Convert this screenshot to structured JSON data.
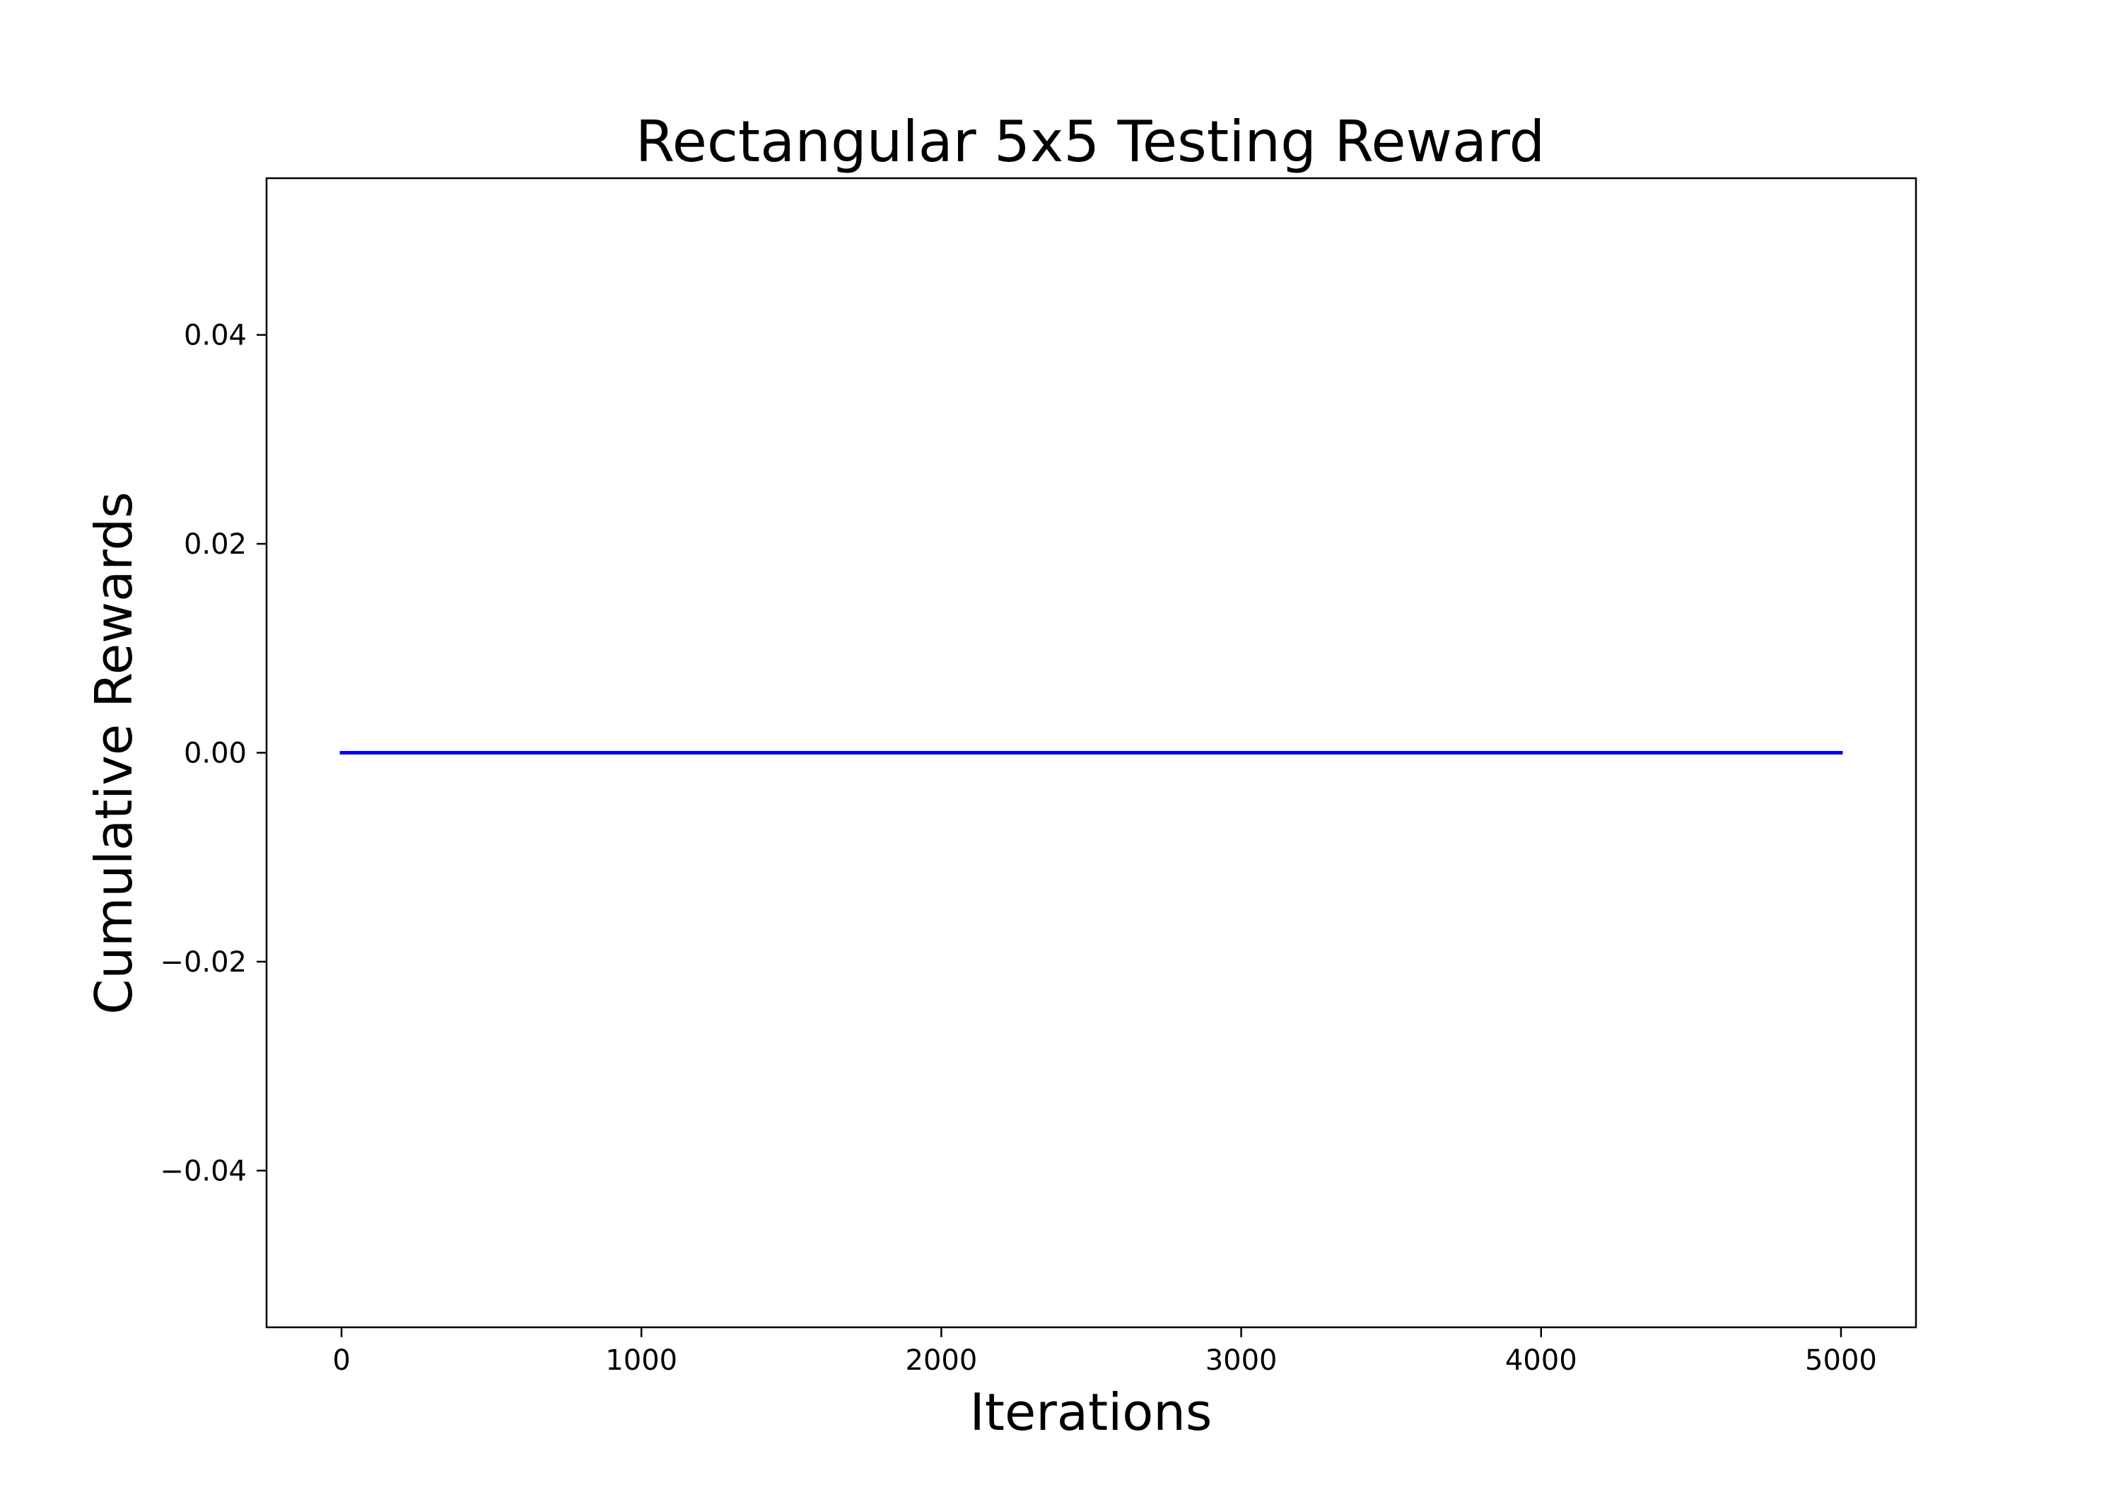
{
  "chart_data": {
    "type": "line",
    "title": "Rectangular 5x5 Testing Reward",
    "xlabel": "Iterations",
    "ylabel": "Cumulative Rewards",
    "xlim": [
      -250,
      5250
    ],
    "ylim": [
      -0.055,
      0.055
    ],
    "x_ticks": [
      0,
      1000,
      2000,
      3000,
      4000,
      5000
    ],
    "x_tick_labels": [
      "0",
      "1000",
      "2000",
      "3000",
      "4000",
      "5000"
    ],
    "y_ticks": [
      -0.04,
      -0.02,
      0.0,
      0.02,
      0.04
    ],
    "y_tick_labels": [
      "−0.04",
      "−0.02",
      "0.00",
      "0.02",
      "0.04"
    ],
    "grid": false,
    "legend": "none",
    "series": [
      {
        "color": "#0000ff",
        "x": [
          0,
          5000
        ],
        "y": [
          0.0,
          0.0
        ]
      }
    ]
  }
}
